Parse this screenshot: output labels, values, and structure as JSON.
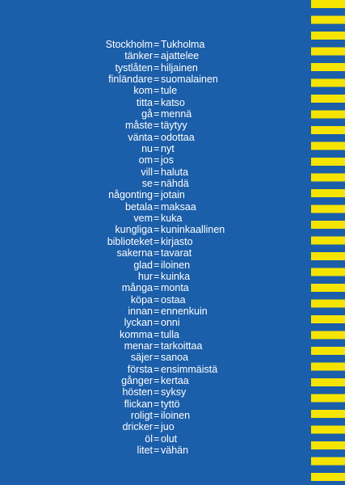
{
  "separator": "=",
  "pairs": [
    [
      "Stockholm",
      "Tukholma"
    ],
    [
      "tänker",
      "ajattelee"
    ],
    [
      "tystlåten",
      "hiljainen"
    ],
    [
      "finländare",
      "suomalainen"
    ],
    [
      "kom",
      "tule"
    ],
    [
      "titta",
      "katso"
    ],
    [
      "gå",
      "mennä"
    ],
    [
      "måste",
      "täytyy"
    ],
    [
      "vänta",
      "odottaa"
    ],
    [
      "nu",
      "nyt"
    ],
    [
      "om",
      "jos"
    ],
    [
      "vill",
      "haluta"
    ],
    [
      "se",
      "nähdä"
    ],
    [
      "någonting",
      "jotain"
    ],
    [
      "betala",
      "maksaa"
    ],
    [
      "vem",
      "kuka"
    ],
    [
      "kungliga",
      "kuninkaallinen"
    ],
    [
      "biblioteket",
      "kirjasto"
    ],
    [
      "sakerna",
      "tavarat"
    ],
    [
      "glad",
      "iloinen"
    ],
    [
      "hur",
      "kuinka"
    ],
    [
      "många",
      "monta"
    ],
    [
      "köpa",
      "ostaa"
    ],
    [
      "innan",
      "ennenkuin"
    ],
    [
      "lyckan",
      "onni"
    ],
    [
      "komma",
      "tulla"
    ],
    [
      "menar",
      "tarkoittaa"
    ],
    [
      "säjer",
      "sanoa"
    ],
    [
      "första",
      "ensimmäistä"
    ],
    [
      "gånger",
      "kertaa"
    ],
    [
      "hösten",
      "syksy"
    ],
    [
      "flickan",
      "tyttö"
    ],
    [
      "roligt",
      "iloinen"
    ],
    [
      "dricker",
      "juo"
    ],
    [
      "öl",
      "olut"
    ],
    [
      "litet",
      "vähän"
    ]
  ]
}
